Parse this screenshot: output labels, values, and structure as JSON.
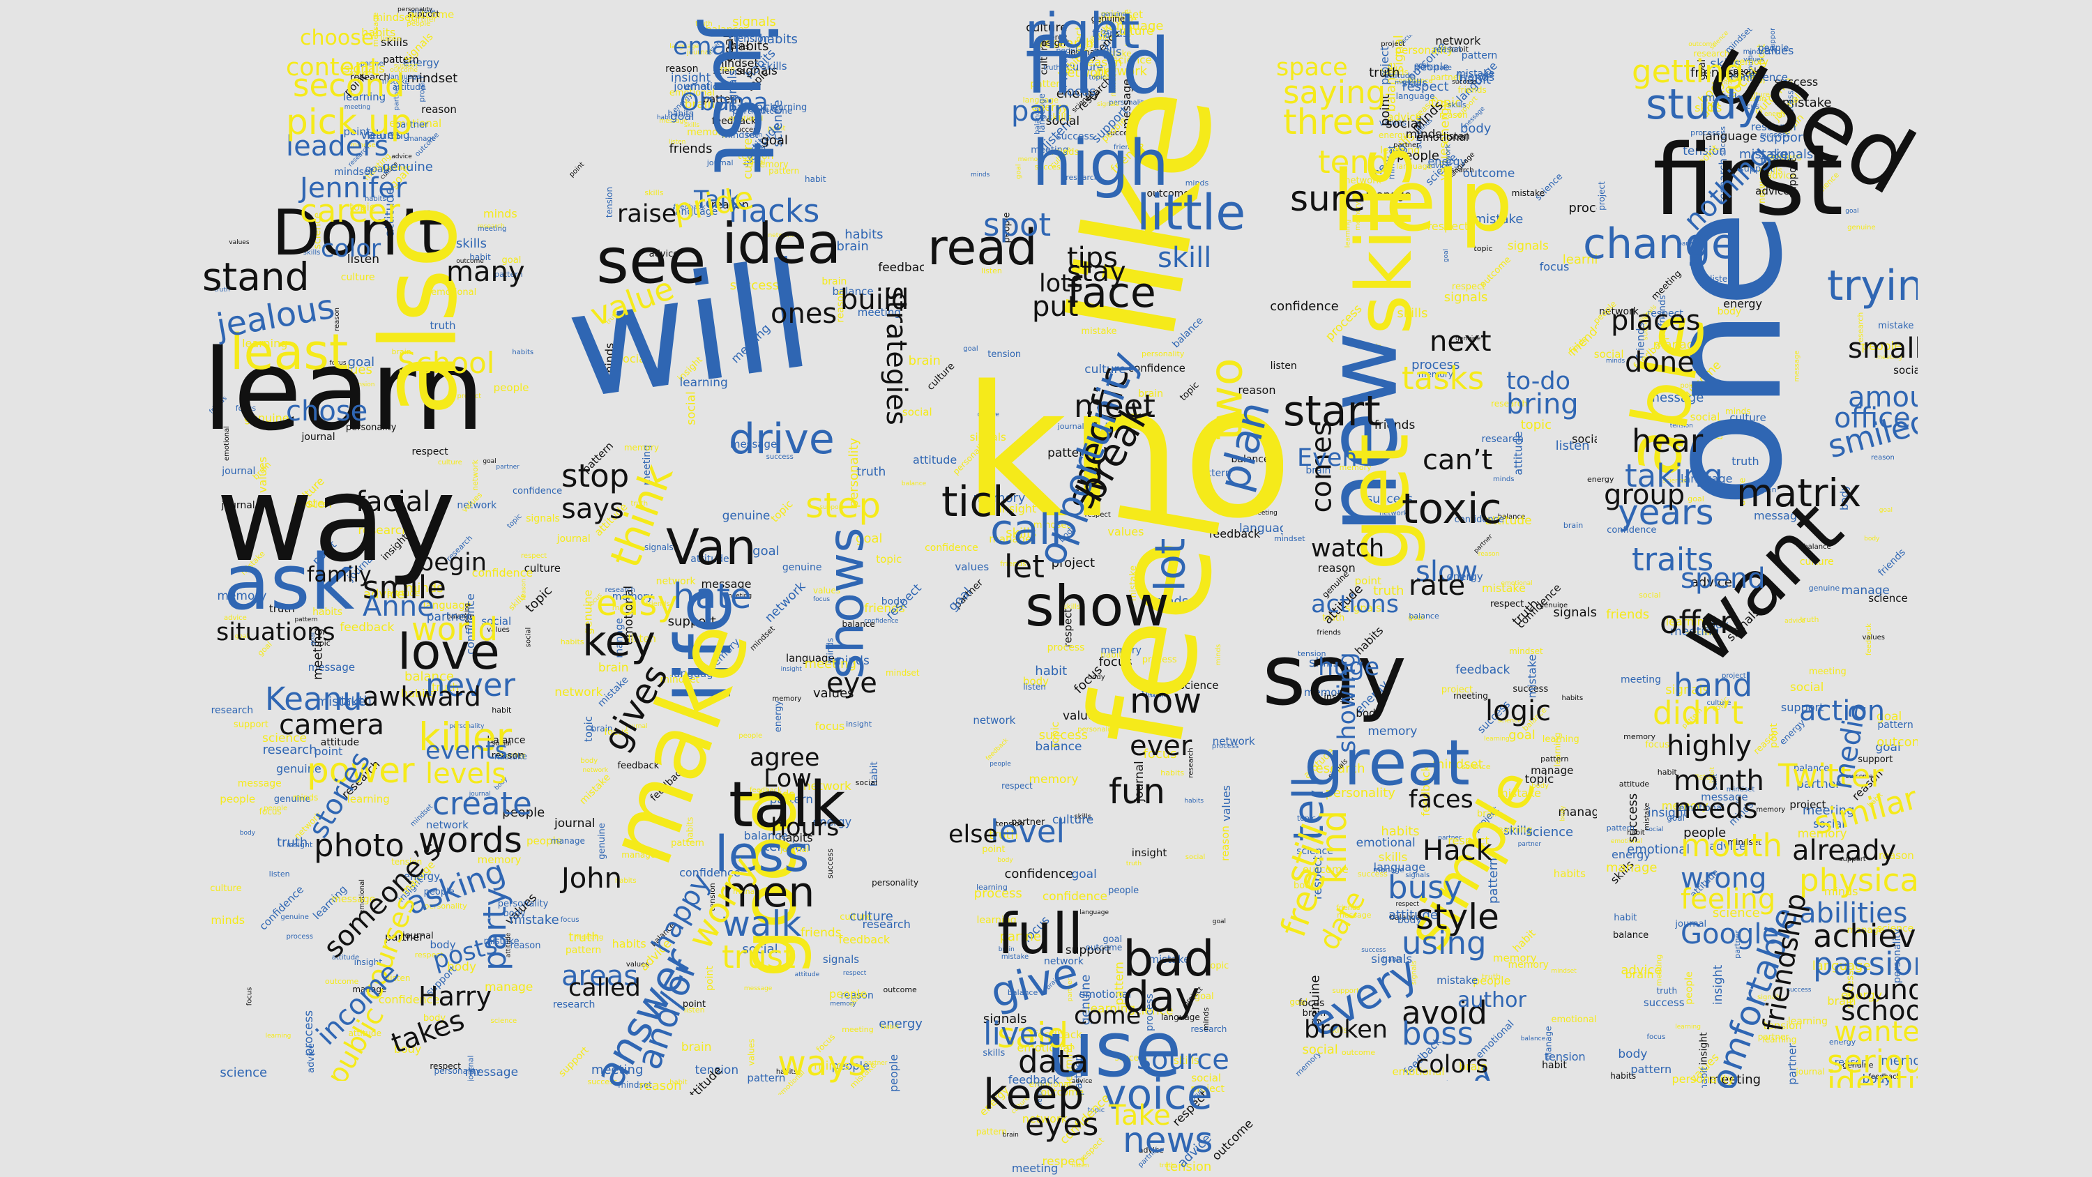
{
  "palette": {
    "background": "#e4e4e4",
    "black": "#111111",
    "blue": "#2f66b3",
    "yellow": "#f5ea1a"
  },
  "figures": [
    {
      "name": "figure-1",
      "words": [
        {
          "text": "learn",
          "color": "black"
        },
        {
          "text": "way",
          "color": "black"
        },
        {
          "text": "Don’t",
          "color": "black"
        },
        {
          "text": "also",
          "color": "yellow"
        },
        {
          "text": "ask",
          "color": "blue"
        },
        {
          "text": "least",
          "color": "yellow"
        },
        {
          "text": "love",
          "color": "black"
        },
        {
          "text": "stand",
          "color": "black"
        },
        {
          "text": "killer",
          "color": "yellow"
        },
        {
          "text": "Keanu",
          "color": "blue"
        },
        {
          "text": "create",
          "color": "blue"
        },
        {
          "text": "words",
          "color": "black"
        },
        {
          "text": "asking",
          "color": "blue"
        },
        {
          "text": "party",
          "color": "blue"
        },
        {
          "text": "world",
          "color": "yellow"
        },
        {
          "text": "never",
          "color": "blue"
        },
        {
          "text": "camera",
          "color": "black"
        },
        {
          "text": "power",
          "color": "yellow"
        },
        {
          "text": "levels",
          "color": "yellow"
        },
        {
          "text": "stories",
          "color": "blue"
        },
        {
          "text": "photo",
          "color": "black"
        },
        {
          "text": "someone’s",
          "color": "black"
        },
        {
          "text": "courses",
          "color": "yellow"
        },
        {
          "text": "income",
          "color": "blue"
        },
        {
          "text": "public",
          "color": "yellow"
        },
        {
          "text": "takes",
          "color": "black"
        },
        {
          "text": "Harry",
          "color": "black"
        },
        {
          "text": "posts",
          "color": "blue"
        },
        {
          "text": "leaders",
          "color": "blue"
        },
        {
          "text": "second",
          "color": "yellow"
        },
        {
          "text": "pick up",
          "color": "yellow"
        },
        {
          "text": "content",
          "color": "yellow"
        },
        {
          "text": "Jennifer",
          "color": "blue"
        },
        {
          "text": "career",
          "color": "yellow"
        },
        {
          "text": "many",
          "color": "black"
        },
        {
          "text": "jealous",
          "color": "blue"
        },
        {
          "text": "School",
          "color": "yellow"
        },
        {
          "text": "chose",
          "color": "blue"
        },
        {
          "text": "facial",
          "color": "black"
        },
        {
          "text": "smile",
          "color": "black"
        },
        {
          "text": "Anne",
          "color": "blue"
        },
        {
          "text": "situations",
          "color": "black"
        },
        {
          "text": "family",
          "color": "black"
        },
        {
          "text": "begin",
          "color": "black"
        },
        {
          "text": "events",
          "color": "blue"
        },
        {
          "text": "awkward",
          "color": "black"
        },
        {
          "text": "choose",
          "color": "yellow"
        },
        {
          "text": "color",
          "color": "blue"
        }
      ]
    },
    {
      "name": "figure-2",
      "words": [
        {
          "text": "will",
          "color": "blue"
        },
        {
          "text": "just",
          "color": "blue"
        },
        {
          "text": "see",
          "color": "black"
        },
        {
          "text": "idea",
          "color": "black"
        },
        {
          "text": "life",
          "color": "blue"
        },
        {
          "text": "make",
          "color": "yellow"
        },
        {
          "text": "good",
          "color": "yellow"
        },
        {
          "text": "talk",
          "color": "black"
        },
        {
          "text": "less",
          "color": "blue"
        },
        {
          "text": "drive",
          "color": "blue"
        },
        {
          "text": "Van",
          "color": "black"
        },
        {
          "text": "shows",
          "color": "blue"
        },
        {
          "text": "think",
          "color": "yellow"
        },
        {
          "text": "answer",
          "color": "blue"
        },
        {
          "text": "and/or",
          "color": "blue"
        },
        {
          "text": "men",
          "color": "black"
        },
        {
          "text": "walk",
          "color": "blue"
        },
        {
          "text": "trust",
          "color": "yellow"
        },
        {
          "text": "key",
          "color": "black"
        },
        {
          "text": "gives",
          "color": "black"
        },
        {
          "text": "easy",
          "color": "yellow"
        },
        {
          "text": "hate",
          "color": "blue"
        },
        {
          "text": "value",
          "color": "yellow"
        },
        {
          "text": "hacks",
          "color": "blue"
        },
        {
          "text": "email",
          "color": "blue"
        },
        {
          "text": "stop",
          "color": "black"
        },
        {
          "text": "says",
          "color": "black"
        },
        {
          "text": "John",
          "color": "black"
        },
        {
          "text": "ways",
          "color": "yellow"
        },
        {
          "text": "areas",
          "color": "blue"
        },
        {
          "text": "called",
          "color": "black"
        },
        {
          "text": "strategies",
          "color": "black"
        },
        {
          "text": "eye",
          "color": "black"
        },
        {
          "text": "agree",
          "color": "black"
        },
        {
          "text": "Low",
          "color": "black"
        },
        {
          "text": "hours",
          "color": "black"
        },
        {
          "text": "worry",
          "color": "yellow"
        },
        {
          "text": "happy",
          "color": "blue"
        },
        {
          "text": "step",
          "color": "yellow"
        },
        {
          "text": "build",
          "color": "black"
        },
        {
          "text": "ones",
          "color": "black"
        },
        {
          "text": "raise",
          "color": "black"
        },
        {
          "text": "Talk",
          "color": "blue"
        },
        {
          "text": "pride",
          "color": "yellow"
        },
        {
          "text": "Obama",
          "color": "blue"
        }
      ]
    },
    {
      "name": "figure-3",
      "words": [
        {
          "text": "know",
          "color": "yellow"
        },
        {
          "text": "like",
          "color": "yellow"
        },
        {
          "text": "feel",
          "color": "yellow"
        },
        {
          "text": "find",
          "color": "blue"
        },
        {
          "text": "right",
          "color": "blue"
        },
        {
          "text": "high",
          "color": "blue"
        },
        {
          "text": "read",
          "color": "black"
        },
        {
          "text": "show",
          "color": "black"
        },
        {
          "text": "use",
          "color": "blue"
        },
        {
          "text": "full",
          "color": "black"
        },
        {
          "text": "keep",
          "color": "black"
        },
        {
          "text": "bad",
          "color": "black"
        },
        {
          "text": "day",
          "color": "black"
        },
        {
          "text": "little",
          "color": "blue"
        },
        {
          "text": "face",
          "color": "black"
        },
        {
          "text": "tick",
          "color": "black"
        },
        {
          "text": "call",
          "color": "blue"
        },
        {
          "text": "lot",
          "color": "blue"
        },
        {
          "text": "voice",
          "color": "blue"
        },
        {
          "text": "news",
          "color": "blue"
        },
        {
          "text": "eyes",
          "color": "black"
        },
        {
          "text": "give",
          "color": "blue"
        },
        {
          "text": "said",
          "color": "yellow"
        },
        {
          "text": "Take",
          "color": "yellow"
        },
        {
          "text": "fun",
          "color": "black"
        },
        {
          "text": "now",
          "color": "black"
        },
        {
          "text": "tips",
          "color": "black"
        },
        {
          "text": "stay",
          "color": "black"
        },
        {
          "text": "two",
          "color": "yellow"
        },
        {
          "text": "plan",
          "color": "blue"
        },
        {
          "text": "specific",
          "color": "black"
        },
        {
          "text": "opportunity",
          "color": "blue"
        },
        {
          "text": "break",
          "color": "black"
        },
        {
          "text": "meet",
          "color": "black"
        },
        {
          "text": "let",
          "color": "black"
        },
        {
          "text": "level",
          "color": "blue"
        },
        {
          "text": "data",
          "color": "black"
        },
        {
          "text": "lives",
          "color": "blue"
        },
        {
          "text": "spot",
          "color": "blue"
        },
        {
          "text": "pain",
          "color": "blue"
        },
        {
          "text": "skill",
          "color": "blue"
        },
        {
          "text": "ever",
          "color": "black"
        },
        {
          "text": "else",
          "color": "black"
        },
        {
          "text": "lots",
          "color": "black"
        },
        {
          "text": "put",
          "color": "black"
        },
        {
          "text": "source",
          "color": "blue"
        },
        {
          "text": "come",
          "color": "black"
        }
      ]
    },
    {
      "name": "figure-4",
      "words": [
        {
          "text": "help",
          "color": "yellow"
        },
        {
          "text": "new",
          "color": "blue"
        },
        {
          "text": "get",
          "color": "yellow"
        },
        {
          "text": "say",
          "color": "black"
        },
        {
          "text": "skills",
          "color": "yellow"
        },
        {
          "text": "great",
          "color": "blue"
        },
        {
          "text": "simple",
          "color": "yellow"
        },
        {
          "text": "start",
          "color": "black"
        },
        {
          "text": "toxic",
          "color": "black"
        },
        {
          "text": "every",
          "color": "blue"
        },
        {
          "text": "tell",
          "color": "blue"
        },
        {
          "text": "still",
          "color": "yellow"
        },
        {
          "text": "sure",
          "color": "black"
        },
        {
          "text": "three",
          "color": "yellow"
        },
        {
          "text": "saying",
          "color": "yellow"
        },
        {
          "text": "tend",
          "color": "yellow"
        },
        {
          "text": "tasks",
          "color": "yellow"
        },
        {
          "text": "comes",
          "color": "black"
        },
        {
          "text": "can’t",
          "color": "black"
        },
        {
          "text": "next",
          "color": "black"
        },
        {
          "text": "slow",
          "color": "blue"
        },
        {
          "text": "rate",
          "color": "black"
        },
        {
          "text": "style",
          "color": "black"
        },
        {
          "text": "using",
          "color": "blue"
        },
        {
          "text": "busy",
          "color": "blue"
        },
        {
          "text": "avoid",
          "color": "black"
        },
        {
          "text": "boss",
          "color": "blue"
        },
        {
          "text": "behind",
          "color": "blue"
        },
        {
          "text": "free",
          "color": "yellow"
        },
        {
          "text": "kind",
          "color": "yellow"
        },
        {
          "text": "Hack",
          "color": "black"
        },
        {
          "text": "logic",
          "color": "black"
        },
        {
          "text": "faces",
          "color": "black"
        },
        {
          "text": "space",
          "color": "yellow"
        },
        {
          "text": "watch",
          "color": "black"
        },
        {
          "text": "actions",
          "color": "blue"
        },
        {
          "text": "huge",
          "color": "blue"
        },
        {
          "text": "bring",
          "color": "blue"
        },
        {
          "text": "to-do",
          "color": "blue"
        },
        {
          "text": "date",
          "color": "yellow"
        },
        {
          "text": "showing",
          "color": "blue"
        },
        {
          "text": "author",
          "color": "blue"
        },
        {
          "text": "colors",
          "color": "black"
        },
        {
          "text": "effects",
          "color": "blue"
        },
        {
          "text": "broken",
          "color": "black"
        },
        {
          "text": "Even",
          "color": "blue"
        }
      ]
    },
    {
      "name": "figure-5",
      "words": [
        {
          "text": "one",
          "color": "blue"
        },
        {
          "text": "first",
          "color": "black"
        },
        {
          "text": "used",
          "color": "black"
        },
        {
          "text": "want",
          "color": "black"
        },
        {
          "text": "able",
          "color": "yellow"
        },
        {
          "text": "study",
          "color": "blue"
        },
        {
          "text": "change",
          "color": "blue"
        },
        {
          "text": "trying",
          "color": "blue"
        },
        {
          "text": "speaking",
          "color": "blue"
        },
        {
          "text": "matrix",
          "color": "black"
        },
        {
          "text": "getting",
          "color": "yellow"
        },
        {
          "text": "places",
          "color": "black"
        },
        {
          "text": "taking",
          "color": "blue"
        },
        {
          "text": "years",
          "color": "blue"
        },
        {
          "text": "done",
          "color": "black"
        },
        {
          "text": "hear",
          "color": "black"
        },
        {
          "text": "traits",
          "color": "blue"
        },
        {
          "text": "spend",
          "color": "blue"
        },
        {
          "text": "offer",
          "color": "black"
        },
        {
          "text": "hand",
          "color": "blue"
        },
        {
          "text": "didn’t",
          "color": "yellow"
        },
        {
          "text": "highly",
          "color": "black"
        },
        {
          "text": "month",
          "color": "black"
        },
        {
          "text": "needs",
          "color": "black"
        },
        {
          "text": "mouth",
          "color": "yellow"
        },
        {
          "text": "wrong",
          "color": "blue"
        },
        {
          "text": "feeling",
          "color": "yellow"
        },
        {
          "text": "Google",
          "color": "blue"
        },
        {
          "text": "Twitter",
          "color": "yellow"
        },
        {
          "text": "similar",
          "color": "yellow"
        },
        {
          "text": "already",
          "color": "black"
        },
        {
          "text": "physical",
          "color": "yellow"
        },
        {
          "text": "abilities",
          "color": "blue"
        },
        {
          "text": "achieve",
          "color": "black"
        },
        {
          "text": "passion",
          "color": "blue"
        },
        {
          "text": "sound",
          "color": "black"
        },
        {
          "text": "school",
          "color": "black"
        },
        {
          "text": "wanted",
          "color": "yellow"
        },
        {
          "text": "serious",
          "color": "yellow"
        },
        {
          "text": "identify",
          "color": "yellow"
        },
        {
          "text": "comfortable",
          "color": "blue"
        },
        {
          "text": "friendship",
          "color": "black"
        },
        {
          "text": "office",
          "color": "blue"
        },
        {
          "text": "amount",
          "color": "blue"
        },
        {
          "text": "action",
          "color": "blue"
        },
        {
          "text": "media",
          "color": "blue"
        },
        {
          "text": "nothing",
          "color": "blue"
        },
        {
          "text": "group",
          "color": "black"
        },
        {
          "text": "smiled",
          "color": "blue"
        },
        {
          "text": "small",
          "color": "black"
        }
      ]
    }
  ],
  "filler_words": [
    "personality",
    "skills",
    "outcome",
    "network",
    "friends",
    "brain",
    "truth",
    "habit",
    "social",
    "people",
    "advice",
    "body",
    "language",
    "goal",
    "minds",
    "respect",
    "attitude",
    "mistake",
    "science",
    "emotional",
    "manage",
    "focus",
    "listen",
    "learning",
    "research",
    "memory",
    "meeting",
    "habits",
    "success",
    "support",
    "feedback",
    "project",
    "tension",
    "balance",
    "process",
    "insight",
    "energy",
    "reason",
    "point",
    "message",
    "culture",
    "values",
    "partner",
    "mindset",
    "journal",
    "genuine",
    "topic",
    "pattern",
    "signals",
    "confidence"
  ]
}
